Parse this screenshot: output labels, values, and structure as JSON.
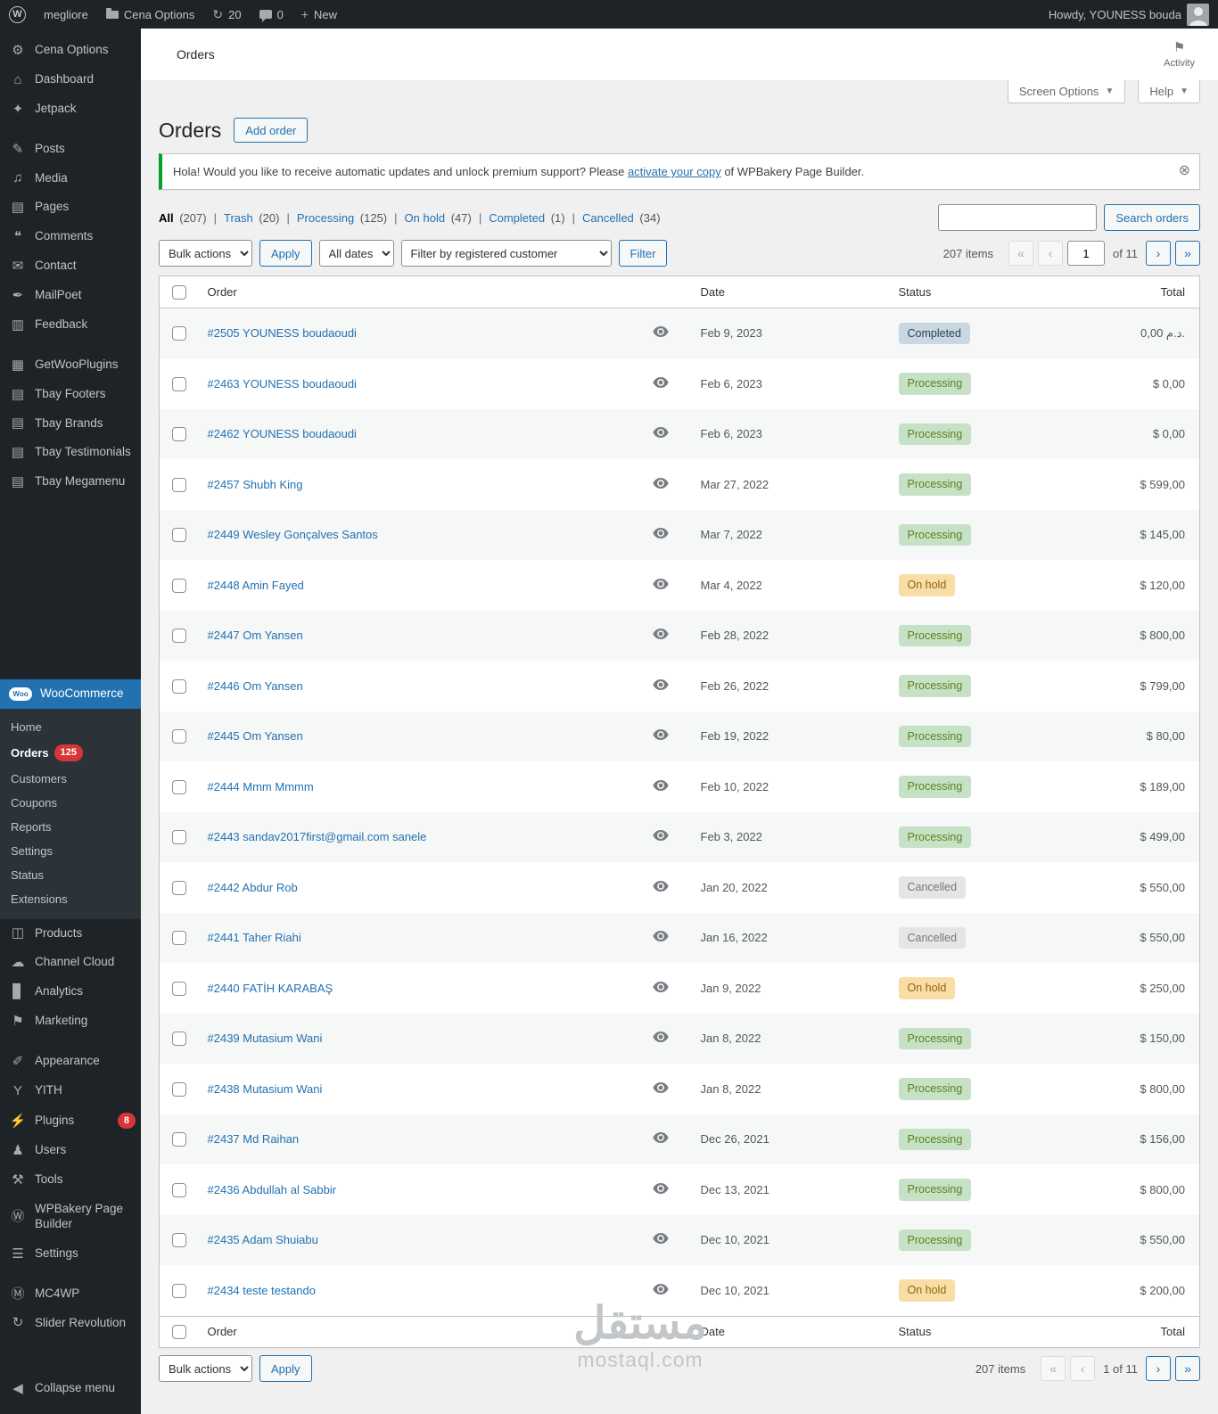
{
  "admin_bar": {
    "wp_logo": "W",
    "site_name": "megliore",
    "folder_label": "Cena Options",
    "updates_count": "20",
    "comments_count": "0",
    "new_label": "New",
    "howdy": "Howdy, YOUNESS bouda"
  },
  "sidebar": {
    "collapse_label": "Collapse menu",
    "items": [
      {
        "label": "Cena Options",
        "icon": "gear"
      },
      {
        "label": "Dashboard",
        "icon": "dashboard"
      },
      {
        "label": "Jetpack",
        "icon": "jetpack"
      },
      {
        "type": "sep"
      },
      {
        "label": "Posts",
        "icon": "posts"
      },
      {
        "label": "Media",
        "icon": "media"
      },
      {
        "label": "Pages",
        "icon": "pages"
      },
      {
        "label": "Comments",
        "icon": "comments"
      },
      {
        "label": "Contact",
        "icon": "contact"
      },
      {
        "label": "MailPoet",
        "icon": "mailpoet"
      },
      {
        "label": "Feedback",
        "icon": "feedback"
      },
      {
        "type": "sep"
      },
      {
        "label": "GetWooPlugins",
        "icon": "getwooplugins"
      },
      {
        "label": "Tbay Footers",
        "icon": "tbay"
      },
      {
        "label": "Tbay Brands",
        "icon": "tbay"
      },
      {
        "label": "Tbay Testimonials",
        "icon": "tbay"
      },
      {
        "label": "Tbay Megamenu",
        "icon": "tbay"
      },
      {
        "type": "spacer"
      },
      {
        "label": "WooCommerce",
        "icon": "woocommerce",
        "active": true,
        "submenu": [
          {
            "label": "Home"
          },
          {
            "label": "Orders",
            "badge": "125",
            "current": true
          },
          {
            "label": "Customers"
          },
          {
            "label": "Coupons"
          },
          {
            "label": "Reports"
          },
          {
            "label": "Settings"
          },
          {
            "label": "Status"
          },
          {
            "label": "Extensions"
          }
        ]
      },
      {
        "label": "Products",
        "icon": "products"
      },
      {
        "label": "Channel Cloud",
        "icon": "cloud"
      },
      {
        "label": "Analytics",
        "icon": "analytics"
      },
      {
        "label": "Marketing",
        "icon": "marketing"
      },
      {
        "type": "sep"
      },
      {
        "label": "Appearance",
        "icon": "appearance"
      },
      {
        "label": "YITH",
        "icon": "yith"
      },
      {
        "label": "Plugins",
        "icon": "plugins",
        "badge": "8"
      },
      {
        "label": "Users",
        "icon": "users"
      },
      {
        "label": "Tools",
        "icon": "tools"
      },
      {
        "label": "WPBakery Page Builder",
        "icon": "wpbakery"
      },
      {
        "label": "Settings",
        "icon": "settings"
      },
      {
        "type": "sep"
      },
      {
        "label": "MC4WP",
        "icon": "mc4wp"
      },
      {
        "label": "Slider Revolution",
        "icon": "slider"
      }
    ]
  },
  "header": {
    "breadcrumb": "Orders",
    "activity_label": "Activity",
    "screen_options_label": "Screen Options",
    "help_label": "Help"
  },
  "page": {
    "title": "Orders",
    "add_order_label": "Add order",
    "notice": {
      "text_before": "Hola! Would you like to receive automatic updates and unlock premium support? Please ",
      "link_text": "activate your copy",
      "text_after": " of WPBakery Page Builder.",
      "dismiss": "⊗"
    },
    "status_filters": [
      {
        "label": "All",
        "count": "(207)",
        "current": true
      },
      {
        "label": "Trash",
        "count": "(20)"
      },
      {
        "label": "Processing",
        "count": "(125)"
      },
      {
        "label": "On hold",
        "count": "(47)"
      },
      {
        "label": "Completed",
        "count": "(1)"
      },
      {
        "label": "Cancelled",
        "count": "(34)"
      }
    ],
    "search_button_label": "Search orders",
    "toolbar": {
      "bulk_actions": "Bulk actions",
      "apply_label": "Apply",
      "all_dates": "All dates",
      "filter_customer": "Filter by registered customer",
      "filter_label": "Filter"
    },
    "pagination": {
      "items_label": "207 items",
      "first": "«",
      "prev": "‹",
      "current": "1",
      "of_label": "of 11",
      "next": "›",
      "last": "»",
      "bottom_label": "1 of 11"
    }
  },
  "table": {
    "columns": {
      "order": "Order",
      "date": "Date",
      "status": "Status",
      "total": "Total"
    },
    "status_colors": {
      "Completed": {
        "bg": "#c8d7e1",
        "fg": "#2e4453"
      },
      "Processing": {
        "bg": "#c6e1c6",
        "fg": "#5b841b"
      },
      "On hold": {
        "bg": "#f8dda7",
        "fg": "#94660c"
      },
      "Cancelled": {
        "bg": "#e5e5e5",
        "fg": "#777777"
      }
    },
    "rows": [
      {
        "order": "#2505 YOUNESS boudaoudi",
        "date": "Feb 9, 2023",
        "status": "Completed",
        "total": "0,00 د.م."
      },
      {
        "order": "#2463 YOUNESS boudaoudi",
        "date": "Feb 6, 2023",
        "status": "Processing",
        "total": "$ 0,00"
      },
      {
        "order": "#2462 YOUNESS boudaoudi",
        "date": "Feb 6, 2023",
        "status": "Processing",
        "total": "$ 0,00"
      },
      {
        "order": "#2457 Shubh King",
        "date": "Mar 27, 2022",
        "status": "Processing",
        "total": "$ 599,00"
      },
      {
        "order": "#2449 Wesley Gonçalves Santos",
        "date": "Mar 7, 2022",
        "status": "Processing",
        "total": "$ 145,00"
      },
      {
        "order": "#2448 Amin Fayed",
        "date": "Mar 4, 2022",
        "status": "On hold",
        "total": "$ 120,00"
      },
      {
        "order": "#2447 Om Yansen",
        "date": "Feb 28, 2022",
        "status": "Processing",
        "total": "$ 800,00"
      },
      {
        "order": "#2446 Om Yansen",
        "date": "Feb 26, 2022",
        "status": "Processing",
        "total": "$ 799,00"
      },
      {
        "order": "#2445 Om Yansen",
        "date": "Feb 19, 2022",
        "status": "Processing",
        "total": "$ 80,00"
      },
      {
        "order": "#2444 Mmm Mmmm",
        "date": "Feb 10, 2022",
        "status": "Processing",
        "total": "$ 189,00"
      },
      {
        "order": "#2443 sandav2017first@gmail.com sanele",
        "date": "Feb 3, 2022",
        "status": "Processing",
        "total": "$ 499,00"
      },
      {
        "order": "#2442 Abdur Rob",
        "date": "Jan 20, 2022",
        "status": "Cancelled",
        "total": "$ 550,00"
      },
      {
        "order": "#2441 Taher Riahi",
        "date": "Jan 16, 2022",
        "status": "Cancelled",
        "total": "$ 550,00"
      },
      {
        "order": "#2440 FATİH KARABAŞ",
        "date": "Jan 9, 2022",
        "status": "On hold",
        "total": "$ 250,00"
      },
      {
        "order": "#2439 Mutasium Wani",
        "date": "Jan 8, 2022",
        "status": "Processing",
        "total": "$ 150,00"
      },
      {
        "order": "#2438 Mutasium Wani",
        "date": "Jan 8, 2022",
        "status": "Processing",
        "total": "$ 800,00"
      },
      {
        "order": "#2437 Md Raihan",
        "date": "Dec 26, 2021",
        "status": "Processing",
        "total": "$ 156,00"
      },
      {
        "order": "#2436 Abdullah al Sabbir",
        "date": "Dec 13, 2021",
        "status": "Processing",
        "total": "$ 800,00"
      },
      {
        "order": "#2435 Adam Shuiabu",
        "date": "Dec 10, 2021",
        "status": "Processing",
        "total": "$ 550,00"
      },
      {
        "order": "#2434 teste testando",
        "date": "Dec 10, 2021",
        "status": "On hold",
        "total": "$ 200,00"
      }
    ]
  },
  "watermark": {
    "arabic": "مستقل",
    "domain": "mostaql.com"
  },
  "colors": {
    "accent": "#2271b1",
    "sidebar_bg": "#1d2327",
    "badge_red": "#d63638",
    "notice_border": "#00a32a"
  }
}
